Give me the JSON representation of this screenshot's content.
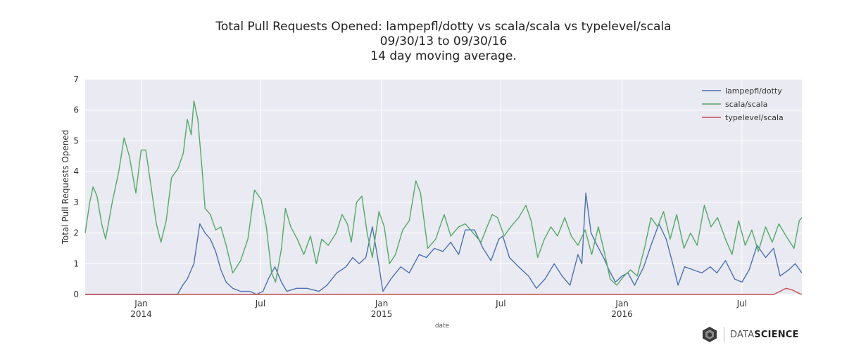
{
  "chart_data": {
    "type": "line",
    "title_lines": [
      "Total Pull Requests Opened: lampepfl/dotty vs scala/scala vs typelevel/scala",
      "09/30/13 to 09/30/16",
      "14 day moving average."
    ],
    "xlabel": "date",
    "ylabel": "Total Pull Requests Opened",
    "ylim": [
      0,
      7
    ],
    "yticks": [
      "0",
      "1",
      "2",
      "3",
      "4",
      "5",
      "6",
      "7"
    ],
    "x_range": [
      "2013-10-08",
      "2016-09-30"
    ],
    "xticks": [
      {
        "date": "2014-01-01",
        "label": "Jan",
        "sub": "2014"
      },
      {
        "date": "2014-07-01",
        "label": "Jul",
        "sub": ""
      },
      {
        "date": "2015-01-01",
        "label": "Jan",
        "sub": "2015"
      },
      {
        "date": "2015-07-01",
        "label": "Jul",
        "sub": ""
      },
      {
        "date": "2016-01-01",
        "label": "Jan",
        "sub": "2016"
      },
      {
        "date": "2016-07-01",
        "label": "Jul",
        "sub": ""
      }
    ],
    "grid": true,
    "legend_position": "top-right",
    "series": [
      {
        "name": "lampepfl/dotty",
        "color": "#4c72b0",
        "points": [
          [
            "2013-10-08",
            0
          ],
          [
            "2014-02-25",
            0
          ],
          [
            "2014-03-05",
            0.3
          ],
          [
            "2014-03-12",
            0.5
          ],
          [
            "2014-03-22",
            1.0
          ],
          [
            "2014-03-31",
            2.3
          ],
          [
            "2014-04-08",
            2.0
          ],
          [
            "2014-04-16",
            1.8
          ],
          [
            "2014-04-24",
            1.4
          ],
          [
            "2014-05-02",
            0.8
          ],
          [
            "2014-05-10",
            0.4
          ],
          [
            "2014-05-20",
            0.2
          ],
          [
            "2014-06-01",
            0.1
          ],
          [
            "2014-06-15",
            0.1
          ],
          [
            "2014-06-25",
            0
          ],
          [
            "2014-07-05",
            0.1
          ],
          [
            "2014-07-13",
            0.5
          ],
          [
            "2014-07-23",
            0.9
          ],
          [
            "2014-08-02",
            0.4
          ],
          [
            "2014-08-10",
            0.1
          ],
          [
            "2014-08-25",
            0.2
          ],
          [
            "2014-09-10",
            0.2
          ],
          [
            "2014-09-28",
            0.1
          ],
          [
            "2014-10-10",
            0.3
          ],
          [
            "2014-10-25",
            0.7
          ],
          [
            "2014-11-08",
            0.9
          ],
          [
            "2014-11-18",
            1.2
          ],
          [
            "2014-11-28",
            1.0
          ],
          [
            "2014-12-08",
            1.2
          ],
          [
            "2014-12-18",
            2.2
          ],
          [
            "2014-12-26",
            1.2
          ],
          [
            "2015-01-03",
            0.1
          ],
          [
            "2015-01-15",
            0.5
          ],
          [
            "2015-01-30",
            0.9
          ],
          [
            "2015-02-12",
            0.7
          ],
          [
            "2015-02-27",
            1.3
          ],
          [
            "2015-03-10",
            1.2
          ],
          [
            "2015-03-22",
            1.5
          ],
          [
            "2015-04-04",
            1.4
          ],
          [
            "2015-04-16",
            1.7
          ],
          [
            "2015-04-28",
            1.3
          ],
          [
            "2015-05-08",
            2.1
          ],
          [
            "2015-05-22",
            2.1
          ],
          [
            "2015-06-04",
            1.5
          ],
          [
            "2015-06-16",
            1.1
          ],
          [
            "2015-06-28",
            1.8
          ],
          [
            "2015-07-04",
            1.9
          ],
          [
            "2015-07-14",
            1.2
          ],
          [
            "2015-07-28",
            0.9
          ],
          [
            "2015-08-12",
            0.6
          ],
          [
            "2015-08-24",
            0.2
          ],
          [
            "2015-09-06",
            0.5
          ],
          [
            "2015-09-20",
            1.0
          ],
          [
            "2015-10-02",
            0.6
          ],
          [
            "2015-10-14",
            0.3
          ],
          [
            "2015-10-26",
            1.3
          ],
          [
            "2015-11-01",
            1.0
          ],
          [
            "2015-11-07",
            3.3
          ],
          [
            "2015-11-15",
            2.0
          ],
          [
            "2015-11-24",
            1.6
          ],
          [
            "2015-12-04",
            1.2
          ],
          [
            "2015-12-12",
            0.8
          ],
          [
            "2015-12-22",
            0.4
          ],
          [
            "2016-01-01",
            0.6
          ],
          [
            "2016-01-10",
            0.7
          ],
          [
            "2016-01-20",
            0.3
          ],
          [
            "2016-02-03",
            0.9
          ],
          [
            "2016-02-14",
            1.6
          ],
          [
            "2016-02-26",
            2.3
          ],
          [
            "2016-03-08",
            1.8
          ],
          [
            "2016-03-18",
            1.0
          ],
          [
            "2016-03-26",
            0.3
          ],
          [
            "2016-04-05",
            0.9
          ],
          [
            "2016-04-18",
            0.8
          ],
          [
            "2016-05-01",
            0.7
          ],
          [
            "2016-05-14",
            0.9
          ],
          [
            "2016-05-24",
            0.7
          ],
          [
            "2016-06-06",
            1.1
          ],
          [
            "2016-06-20",
            0.5
          ],
          [
            "2016-07-01",
            0.4
          ],
          [
            "2016-07-12",
            0.8
          ],
          [
            "2016-07-24",
            1.6
          ],
          [
            "2016-08-06",
            1.2
          ],
          [
            "2016-08-18",
            1.5
          ],
          [
            "2016-08-28",
            0.6
          ],
          [
            "2016-09-10",
            0.8
          ],
          [
            "2016-09-20",
            1.0
          ],
          [
            "2016-09-30",
            0.7
          ]
        ]
      },
      {
        "name": "scala/scala",
        "color": "#55a868",
        "points": [
          [
            "2013-10-08",
            2.0
          ],
          [
            "2013-10-15",
            3.0
          ],
          [
            "2013-10-20",
            3.5
          ],
          [
            "2013-10-26",
            3.2
          ],
          [
            "2013-11-02",
            2.3
          ],
          [
            "2013-11-08",
            1.8
          ],
          [
            "2013-11-18",
            3.0
          ],
          [
            "2013-11-28",
            4.0
          ],
          [
            "2013-12-06",
            5.1
          ],
          [
            "2013-12-14",
            4.5
          ],
          [
            "2013-12-24",
            3.3
          ],
          [
            "2014-01-01",
            4.7
          ],
          [
            "2014-01-08",
            4.7
          ],
          [
            "2014-01-16",
            3.5
          ],
          [
            "2014-01-24",
            2.3
          ],
          [
            "2014-01-31",
            1.7
          ],
          [
            "2014-02-08",
            2.4
          ],
          [
            "2014-02-16",
            3.8
          ],
          [
            "2014-02-26",
            4.1
          ],
          [
            "2014-03-06",
            4.6
          ],
          [
            "2014-03-12",
            5.7
          ],
          [
            "2014-03-18",
            5.2
          ],
          [
            "2014-03-22",
            6.3
          ],
          [
            "2014-03-28",
            5.7
          ],
          [
            "2014-04-03",
            4.2
          ],
          [
            "2014-04-08",
            2.8
          ],
          [
            "2014-04-16",
            2.6
          ],
          [
            "2014-04-24",
            2.1
          ],
          [
            "2014-05-02",
            2.2
          ],
          [
            "2014-05-10",
            1.6
          ],
          [
            "2014-05-20",
            0.7
          ],
          [
            "2014-06-01",
            1.1
          ],
          [
            "2014-06-12",
            1.8
          ],
          [
            "2014-06-22",
            3.4
          ],
          [
            "2014-07-02",
            3.1
          ],
          [
            "2014-07-10",
            2.2
          ],
          [
            "2014-07-18",
            0.7
          ],
          [
            "2014-07-24",
            0.4
          ],
          [
            "2014-08-02",
            1.5
          ],
          [
            "2014-08-08",
            2.8
          ],
          [
            "2014-08-16",
            2.2
          ],
          [
            "2014-08-26",
            1.8
          ],
          [
            "2014-09-05",
            1.3
          ],
          [
            "2014-09-15",
            1.9
          ],
          [
            "2014-09-24",
            1.0
          ],
          [
            "2014-10-02",
            1.8
          ],
          [
            "2014-10-12",
            1.6
          ],
          [
            "2014-10-24",
            2.0
          ],
          [
            "2014-11-02",
            2.6
          ],
          [
            "2014-11-10",
            2.3
          ],
          [
            "2014-11-16",
            1.7
          ],
          [
            "2014-11-24",
            3.0
          ],
          [
            "2014-12-02",
            3.2
          ],
          [
            "2014-12-10",
            2.0
          ],
          [
            "2014-12-18",
            1.2
          ],
          [
            "2014-12-28",
            2.7
          ],
          [
            "2015-01-05",
            2.2
          ],
          [
            "2015-01-13",
            1.0
          ],
          [
            "2015-01-22",
            1.3
          ],
          [
            "2015-02-02",
            2.1
          ],
          [
            "2015-02-12",
            2.4
          ],
          [
            "2015-02-22",
            3.7
          ],
          [
            "2015-03-01",
            3.3
          ],
          [
            "2015-03-12",
            1.5
          ],
          [
            "2015-03-24",
            1.8
          ],
          [
            "2015-04-06",
            2.6
          ],
          [
            "2015-04-16",
            1.9
          ],
          [
            "2015-04-28",
            2.2
          ],
          [
            "2015-05-08",
            2.3
          ],
          [
            "2015-05-20",
            2.0
          ],
          [
            "2015-06-01",
            1.7
          ],
          [
            "2015-06-10",
            2.2
          ],
          [
            "2015-06-18",
            2.6
          ],
          [
            "2015-06-26",
            2.5
          ],
          [
            "2015-07-06",
            1.9
          ],
          [
            "2015-07-16",
            2.2
          ],
          [
            "2015-07-28",
            2.5
          ],
          [
            "2015-08-08",
            2.9
          ],
          [
            "2015-08-16",
            2.4
          ],
          [
            "2015-08-26",
            1.2
          ],
          [
            "2015-09-05",
            1.8
          ],
          [
            "2015-09-15",
            2.2
          ],
          [
            "2015-09-25",
            1.9
          ],
          [
            "2015-10-06",
            2.5
          ],
          [
            "2015-10-16",
            1.9
          ],
          [
            "2015-10-26",
            1.6
          ],
          [
            "2015-11-06",
            2.1
          ],
          [
            "2015-11-16",
            1.3
          ],
          [
            "2015-11-26",
            2.2
          ],
          [
            "2015-12-06",
            1.3
          ],
          [
            "2015-12-14",
            0.5
          ],
          [
            "2015-12-24",
            0.3
          ],
          [
            "2016-01-04",
            0.6
          ],
          [
            "2016-01-14",
            0.8
          ],
          [
            "2016-01-24",
            0.6
          ],
          [
            "2016-02-04",
            1.5
          ],
          [
            "2016-02-14",
            2.5
          ],
          [
            "2016-02-24",
            2.2
          ],
          [
            "2016-03-04",
            2.7
          ],
          [
            "2016-03-14",
            1.8
          ],
          [
            "2016-03-24",
            2.6
          ],
          [
            "2016-04-04",
            1.5
          ],
          [
            "2016-04-14",
            2.0
          ],
          [
            "2016-04-24",
            1.6
          ],
          [
            "2016-05-05",
            2.9
          ],
          [
            "2016-05-15",
            2.2
          ],
          [
            "2016-05-25",
            2.5
          ],
          [
            "2016-06-06",
            1.8
          ],
          [
            "2016-06-16",
            1.3
          ],
          [
            "2016-06-26",
            2.4
          ],
          [
            "2016-07-06",
            1.6
          ],
          [
            "2016-07-16",
            2.1
          ],
          [
            "2016-07-26",
            1.4
          ],
          [
            "2016-08-06",
            2.2
          ],
          [
            "2016-08-16",
            1.7
          ],
          [
            "2016-08-26",
            2.3
          ],
          [
            "2016-09-06",
            1.9
          ],
          [
            "2016-09-18",
            1.5
          ],
          [
            "2016-09-26",
            2.4
          ],
          [
            "2016-09-30",
            2.5
          ]
        ]
      },
      {
        "name": "typelevel/scala",
        "color": "#c44e52",
        "points": [
          [
            "2013-10-08",
            0
          ],
          [
            "2016-08-18",
            0
          ],
          [
            "2016-08-28",
            0.1
          ],
          [
            "2016-09-06",
            0.2
          ],
          [
            "2016-09-15",
            0.15
          ],
          [
            "2016-09-24",
            0.05
          ],
          [
            "2016-09-30",
            0
          ]
        ]
      }
    ]
  },
  "logo": {
    "text_light": "DATA",
    "text_bold": "SCIENCE"
  }
}
